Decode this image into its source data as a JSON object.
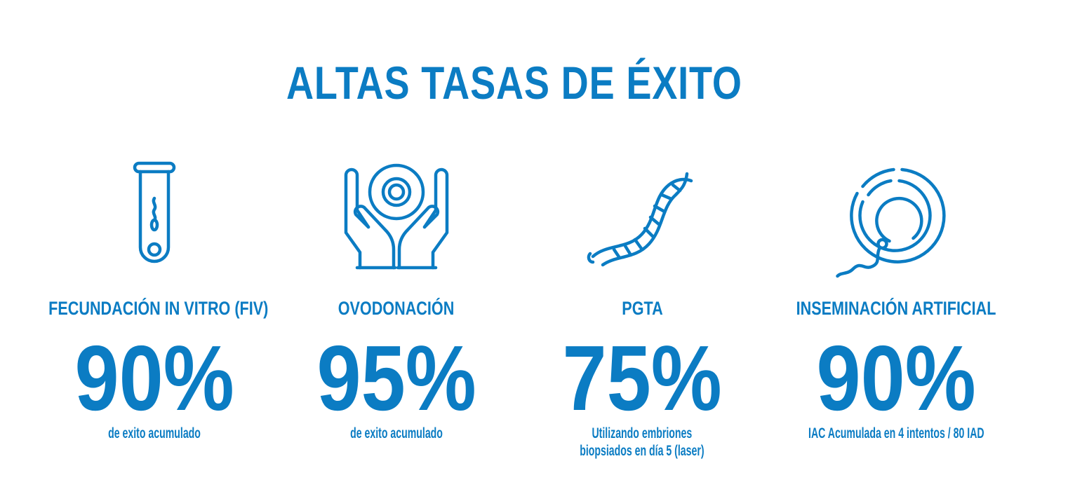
{
  "title": "ALTAS TASAS DE ÉXITO",
  "colors": {
    "primary": "#0b7cc3",
    "background": "#ffffff"
  },
  "stats": [
    {
      "icon": "test-tube-sperm-icon",
      "label": "FECUNDACIÓN IN VITRO (FIV)",
      "value": "90%",
      "desc_lines": [
        "de exito acumulado"
      ]
    },
    {
      "icon": "hands-holding-egg-icon",
      "label": "OVODONACIÓN",
      "value": "95%",
      "desc_lines": [
        "de exito acumulado"
      ]
    },
    {
      "icon": "dna-helix-icon",
      "label": "PGTA",
      "value": "75%",
      "desc_lines": [
        "Utilizando embriones",
        "biopsiados en día 5 (laser)"
      ]
    },
    {
      "icon": "egg-sperm-icon",
      "label": "INSEMINACIÓN ARTIFICIAL",
      "value": "90%",
      "desc_lines": [
        "IAC Acumulada en 4 intentos / 80 IAD"
      ]
    }
  ]
}
